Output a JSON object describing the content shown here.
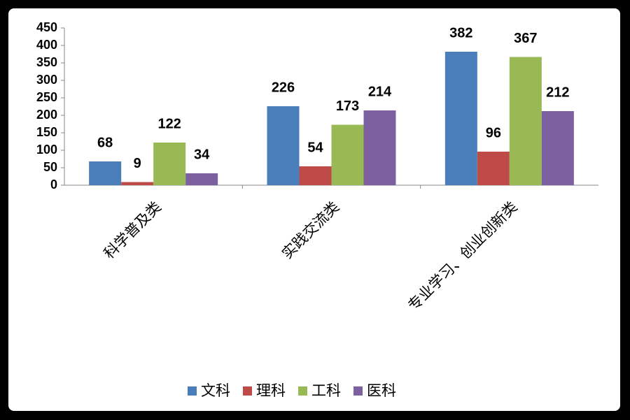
{
  "chart_data": {
    "type": "bar",
    "categories": [
      "科学普及类",
      "实践交流类",
      "专业学习、创业创新类"
    ],
    "series": [
      {
        "name": "文科",
        "color": "#4a7ebb",
        "values": [
          68,
          226,
          382
        ]
      },
      {
        "name": "理科",
        "color": "#be4b48",
        "values": [
          9,
          54,
          96
        ]
      },
      {
        "name": "工科",
        "color": "#98b954",
        "values": [
          122,
          173,
          367
        ]
      },
      {
        "name": "医科",
        "color": "#7d60a0",
        "values": [
          34,
          214,
          212
        ]
      }
    ],
    "ylim": [
      0,
      450
    ],
    "yticks": [
      0,
      50,
      100,
      150,
      200,
      250,
      300,
      350,
      400,
      450
    ],
    "legend": "bottom"
  }
}
